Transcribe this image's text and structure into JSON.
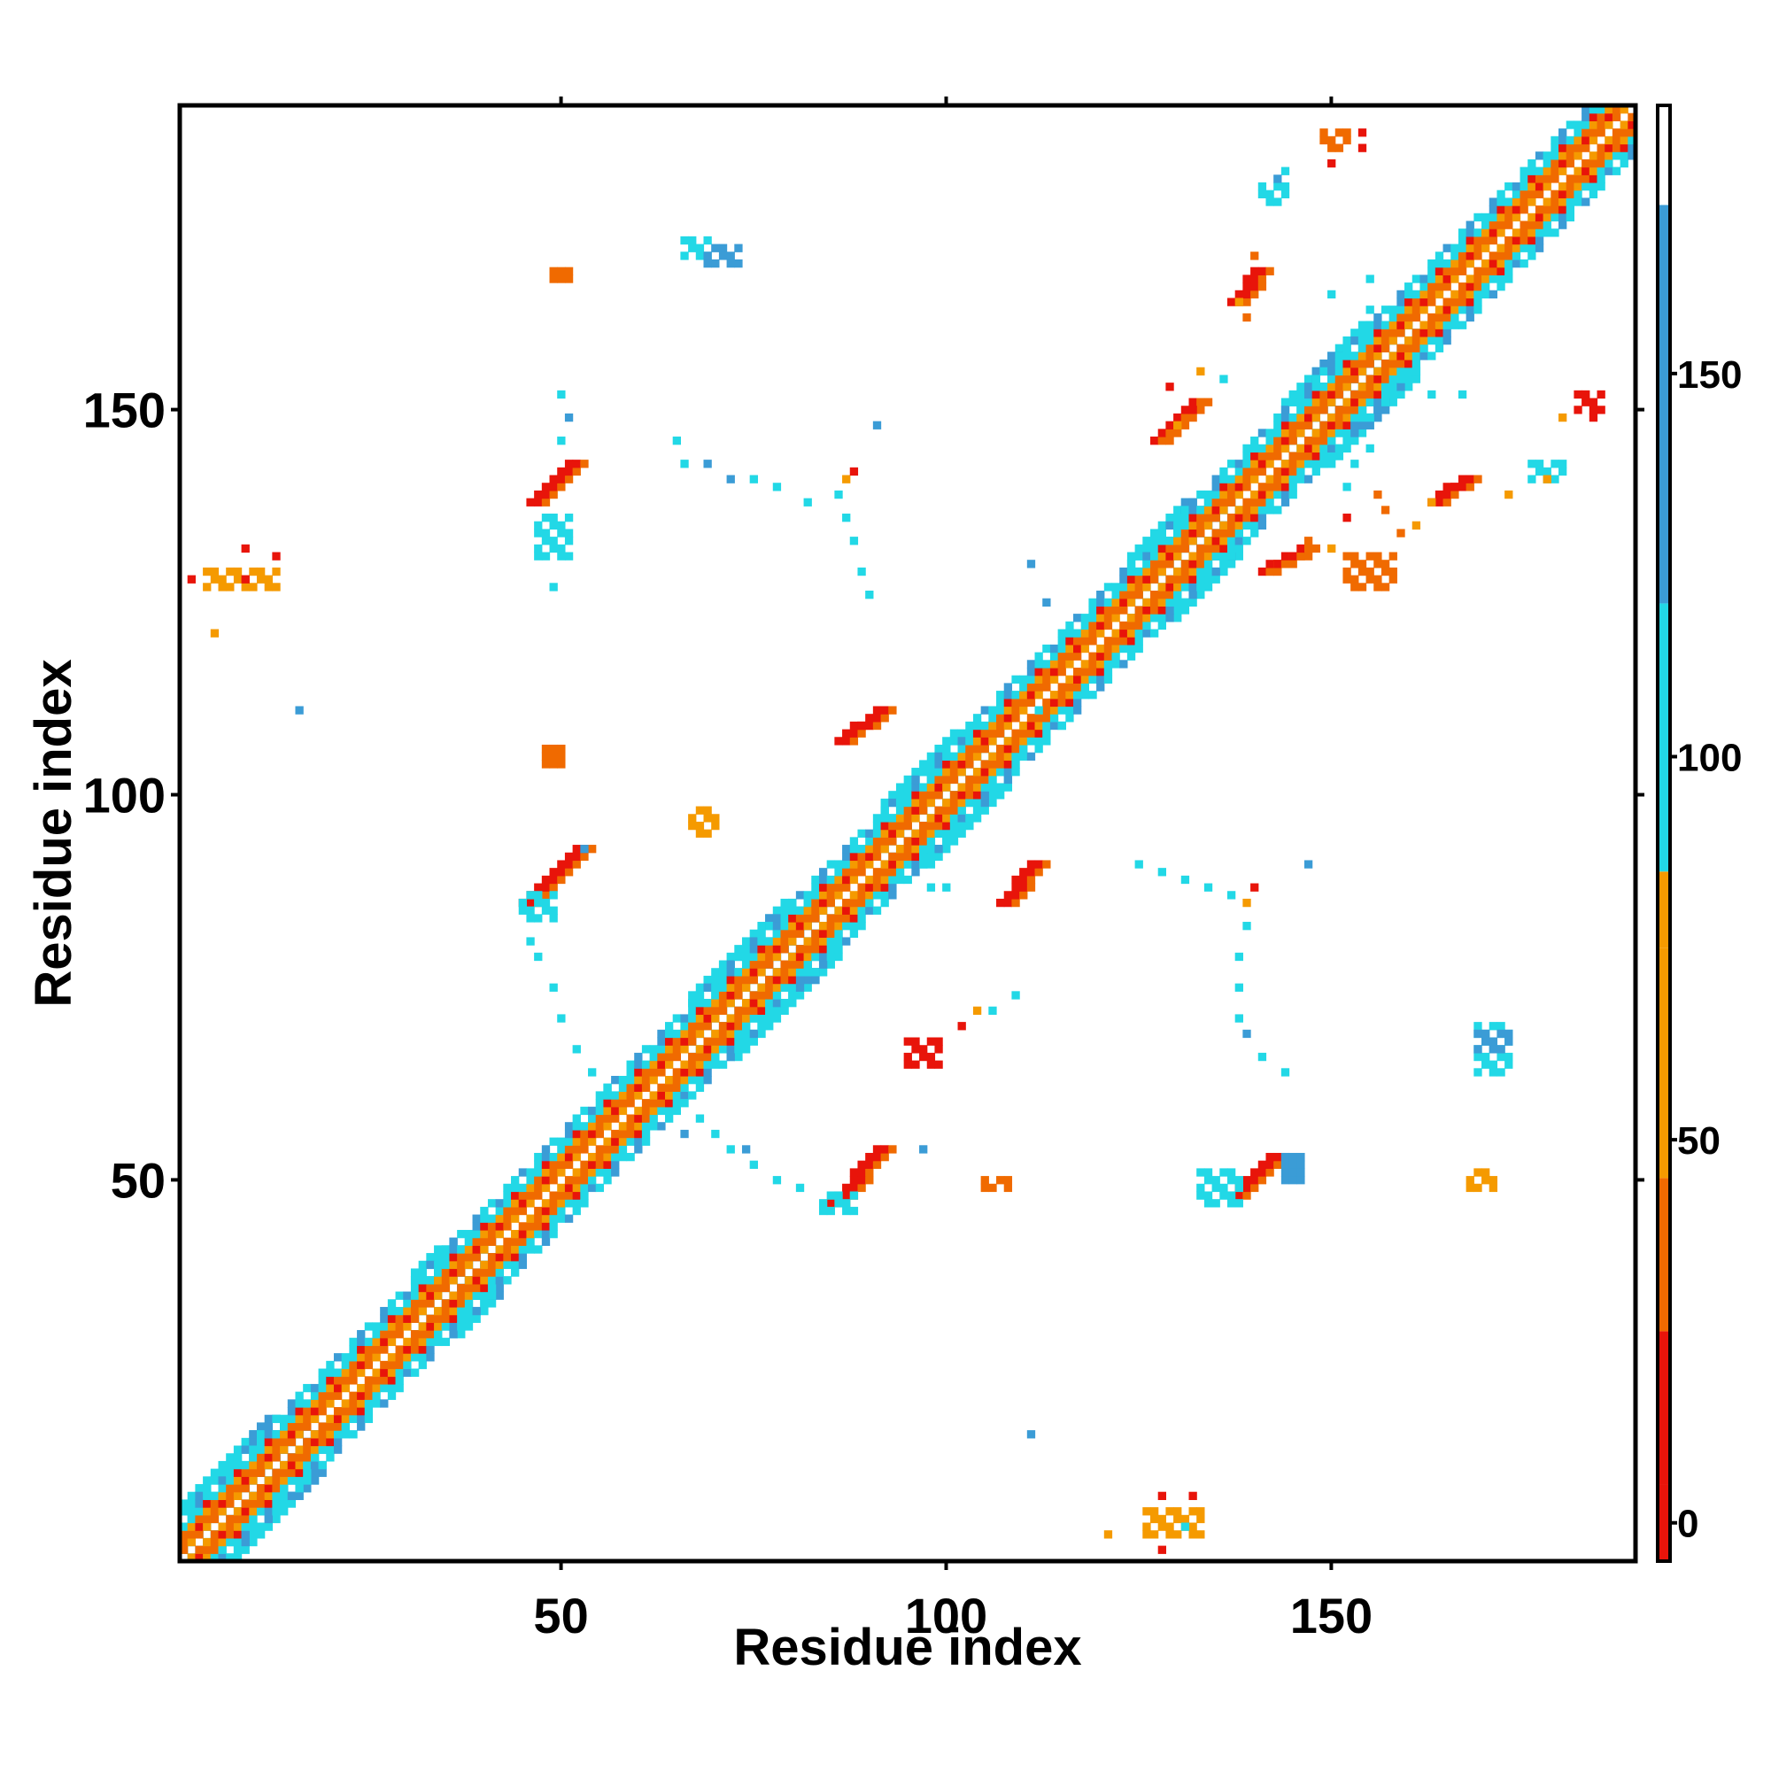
{
  "chart_data": {
    "type": "heatmap",
    "title": "",
    "xlabel": "Residue index",
    "ylabel": "Residue index",
    "xlim": [
      1,
      189
    ],
    "ylim": [
      1,
      189
    ],
    "x_ticks": [
      50,
      100,
      150
    ],
    "x_tick_labels": [
      "50",
      "100",
      "150"
    ],
    "y_ticks": [
      50,
      100,
      150
    ],
    "y_tick_labels": [
      "50",
      "100",
      "150"
    ],
    "colorbar": {
      "range": [
        -5,
        185
      ],
      "ticks": [
        0,
        50,
        100,
        150
      ],
      "tick_labels": [
        "0",
        "50",
        "100",
        "150"
      ],
      "bands": [
        {
          "from": -5,
          "to": 5,
          "color": "#e8140a"
        },
        {
          "from": 5,
          "to": 25,
          "color": "#e8140a"
        },
        {
          "from": 25,
          "to": 45,
          "color": "#f06a00"
        },
        {
          "from": 45,
          "to": 75,
          "color": "#f59a00"
        },
        {
          "from": 75,
          "to": 85,
          "color": "#f59a00"
        },
        {
          "from": 85,
          "to": 120,
          "color": "#22d8e6"
        },
        {
          "from": 120,
          "to": 172,
          "color": "#3b9cd6"
        },
        {
          "from": 172,
          "to": 185,
          "color": "#ffffff"
        }
      ]
    },
    "colors": {
      "red": "#e8140a",
      "orange": "#f06a00",
      "amber": "#f59a00",
      "cyan": "#22d8e6",
      "blue": "#3b9cd6"
    },
    "diagonal_band": {
      "x_range": [
        1,
        189
      ],
      "half_width": 6,
      "pattern": [
        "white",
        "orange",
        "amber",
        "red",
        "cyan",
        "blue"
      ]
    },
    "blocks": [
      {
        "x": [
          1,
          18
        ],
        "y": [
          1,
          18
        ],
        "color": "cyan"
      },
      {
        "x": [
          10,
          19
        ],
        "y": [
          9,
          19
        ],
        "color": "blue"
      },
      {
        "x": [
          31,
          41
        ],
        "y": [
          30,
          41
        ],
        "color": "cyan"
      },
      {
        "x": [
          36,
          42
        ],
        "y": [
          35,
          42
        ],
        "color": "blue"
      },
      {
        "x": [
          67,
          86
        ],
        "y": [
          66,
          86
        ],
        "color": "cyan"
      },
      {
        "x": [
          77,
          83
        ],
        "y": [
          76,
          84
        ],
        "color": "blue"
      },
      {
        "x": [
          92,
          108
        ],
        "y": [
          91,
          108
        ],
        "color": "cyan"
      },
      {
        "x": [
          124,
          138
        ],
        "y": [
          123,
          138
        ],
        "color": "cyan"
      },
      {
        "x": [
          131,
          137
        ],
        "y": [
          131,
          138
        ],
        "color": "blue"
      },
      {
        "x": [
          144,
          161
        ],
        "y": [
          143,
          161
        ],
        "color": "cyan"
      },
      {
        "x": [
          148,
          157
        ],
        "y": [
          148,
          157
        ],
        "color": "blue"
      }
    ],
    "segments": [
      {
        "x": [
          86,
          92
        ],
        "y": [
          47,
          54
        ],
        "color": "red"
      },
      {
        "x": [
          46,
          53
        ],
        "y": [
          86,
          93
        ],
        "color": "red"
      },
      {
        "x": [
          138,
          143
        ],
        "y": [
          48,
          53
        ],
        "color": "red"
      },
      {
        "x": [
          47,
          52
        ],
        "y": [
          138,
          143
        ],
        "color": "red"
      },
      {
        "x": [
          108,
          112
        ],
        "y": [
          86,
          91
        ],
        "color": "red"
      },
      {
        "x": [
          87,
          92
        ],
        "y": [
          107,
          111
        ],
        "color": "red"
      },
      {
        "x": [
          164,
          168
        ],
        "y": [
          138,
          141
        ],
        "color": "red"
      },
      {
        "x": [
          138,
          141
        ],
        "y": [
          164,
          168
        ],
        "color": "red"
      },
      {
        "x": [
          128,
          133
        ],
        "y": [
          146,
          151
        ],
        "color": "orange"
      },
      {
        "x": [
          142,
          147
        ],
        "y": [
          129,
          132
        ],
        "color": "orange"
      }
    ],
    "patches": [
      {
        "x": [
          84,
          88
        ],
        "y": [
          46,
          48
        ],
        "color": "cyan"
      },
      {
        "x": [
          133,
          138
        ],
        "y": [
          47,
          51
        ],
        "color": "cyan"
      },
      {
        "x": [
          45,
          49
        ],
        "y": [
          84,
          87
        ],
        "color": "cyan"
      },
      {
        "x": [
          47,
          51
        ],
        "y": [
          131,
          136
        ],
        "color": "cyan"
      },
      {
        "x": [
          169,
          173
        ],
        "y": [
          64,
          70
        ],
        "color": "cyan"
      },
      {
        "x": [
          169,
          173
        ],
        "y": [
          67,
          69
        ],
        "color": "blue"
      },
      {
        "x": [
          144,
          146
        ],
        "y": [
          50,
          53
        ],
        "color": "blue"
      },
      {
        "x": [
          66,
          69
        ],
        "y": [
          170,
          172
        ],
        "color": "cyan"
      },
      {
        "x": [
          69,
          73
        ],
        "y": [
          169,
          171
        ],
        "color": "blue"
      },
      {
        "x": [
          4,
          13
        ],
        "y": [
          127,
          129
        ],
        "color": "amber"
      },
      {
        "x": [
          126,
          133
        ],
        "y": [
          4,
          7
        ],
        "color": "amber"
      },
      {
        "x": [
          105,
          108
        ],
        "y": [
          49,
          50
        ],
        "color": "orange"
      },
      {
        "x": [
          48,
          50
        ],
        "y": [
          104,
          106
        ],
        "color": "orange"
      },
      {
        "x": [
          168,
          171
        ],
        "y": [
          49,
          51
        ],
        "color": "amber"
      },
      {
        "x": [
          182,
          185
        ],
        "y": [
          150,
          152
        ],
        "color": "red"
      },
      {
        "x": [
          176,
          180
        ],
        "y": [
          141,
          143
        ],
        "color": "cyan"
      },
      {
        "x": [
          152,
          158
        ],
        "y": [
          127,
          131
        ],
        "color": "orange"
      },
      {
        "x": [
          149,
          152
        ],
        "y": [
          184,
          186
        ],
        "color": "orange"
      },
      {
        "x": [
          141,
          144
        ],
        "y": [
          177,
          179
        ],
        "color": "cyan"
      },
      {
        "x": [
          49,
          51
        ],
        "y": [
          167,
          168
        ],
        "color": "orange"
      },
      {
        "x": [
          95,
          99
        ],
        "y": [
          65,
          68
        ],
        "color": "red"
      },
      {
        "x": [
          67,
          70
        ],
        "y": [
          95,
          98
        ],
        "color": "amber"
      }
    ],
    "scatter": [
      {
        "x": 66,
        "y": 60,
        "color": "cyan"
      },
      {
        "x": 68,
        "y": 58,
        "color": "cyan"
      },
      {
        "x": 70,
        "y": 56,
        "color": "cyan"
      },
      {
        "x": 72,
        "y": 54,
        "color": "cyan"
      },
      {
        "x": 75,
        "y": 52,
        "color": "cyan"
      },
      {
        "x": 78,
        "y": 50,
        "color": "cyan"
      },
      {
        "x": 81,
        "y": 49,
        "color": "cyan"
      },
      {
        "x": 66,
        "y": 56,
        "color": "blue"
      },
      {
        "x": 74,
        "y": 54,
        "color": "blue"
      },
      {
        "x": 97,
        "y": 54,
        "color": "blue"
      },
      {
        "x": 56,
        "y": 62,
        "color": "cyan"
      },
      {
        "x": 54,
        "y": 64,
        "color": "cyan"
      },
      {
        "x": 52,
        "y": 67,
        "color": "cyan"
      },
      {
        "x": 50,
        "y": 71,
        "color": "cyan"
      },
      {
        "x": 49,
        "y": 75,
        "color": "cyan"
      },
      {
        "x": 47,
        "y": 79,
        "color": "cyan"
      },
      {
        "x": 46,
        "y": 81,
        "color": "cyan"
      },
      {
        "x": 53,
        "y": 93,
        "color": "blue"
      },
      {
        "x": 104,
        "y": 72,
        "color": "amber"
      },
      {
        "x": 102,
        "y": 70,
        "color": "red"
      },
      {
        "x": 106,
        "y": 72,
        "color": "cyan"
      },
      {
        "x": 109,
        "y": 74,
        "color": "cyan"
      },
      {
        "x": 98,
        "y": 88,
        "color": "cyan"
      },
      {
        "x": 100,
        "y": 88,
        "color": "cyan"
      },
      {
        "x": 111,
        "y": 17,
        "color": "blue"
      },
      {
        "x": 121,
        "y": 4,
        "color": "amber"
      },
      {
        "x": 128,
        "y": 2,
        "color": "red"
      },
      {
        "x": 131,
        "y": 5,
        "color": "cyan"
      },
      {
        "x": 128,
        "y": 9,
        "color": "red"
      },
      {
        "x": 132,
        "y": 9,
        "color": "red"
      },
      {
        "x": 16,
        "y": 111,
        "color": "blue"
      },
      {
        "x": 5,
        "y": 121,
        "color": "amber"
      },
      {
        "x": 2,
        "y": 128,
        "color": "red"
      },
      {
        "x": 9,
        "y": 128,
        "color": "red"
      },
      {
        "x": 9,
        "y": 132,
        "color": "red"
      },
      {
        "x": 13,
        "y": 131,
        "color": "red"
      },
      {
        "x": 125,
        "y": 91,
        "color": "cyan"
      },
      {
        "x": 128,
        "y": 90,
        "color": "cyan"
      },
      {
        "x": 131,
        "y": 89,
        "color": "cyan"
      },
      {
        "x": 134,
        "y": 88,
        "color": "cyan"
      },
      {
        "x": 137,
        "y": 87,
        "color": "cyan"
      },
      {
        "x": 139,
        "y": 86,
        "color": "amber"
      },
      {
        "x": 140,
        "y": 88,
        "color": "red"
      },
      {
        "x": 139,
        "y": 83,
        "color": "cyan"
      },
      {
        "x": 138,
        "y": 79,
        "color": "cyan"
      },
      {
        "x": 138,
        "y": 75,
        "color": "cyan"
      },
      {
        "x": 138,
        "y": 71,
        "color": "cyan"
      },
      {
        "x": 139,
        "y": 69,
        "color": "blue"
      },
      {
        "x": 141,
        "y": 66,
        "color": "cyan"
      },
      {
        "x": 144,
        "y": 64,
        "color": "cyan"
      },
      {
        "x": 147,
        "y": 91,
        "color": "blue"
      },
      {
        "x": 112,
        "y": 111,
        "color": "cyan"
      },
      {
        "x": 115,
        "y": 109,
        "color": "cyan"
      },
      {
        "x": 90,
        "y": 126,
        "color": "cyan"
      },
      {
        "x": 89,
        "y": 129,
        "color": "cyan"
      },
      {
        "x": 88,
        "y": 133,
        "color": "cyan"
      },
      {
        "x": 87,
        "y": 136,
        "color": "cyan"
      },
      {
        "x": 86,
        "y": 139,
        "color": "cyan"
      },
      {
        "x": 87,
        "y": 141,
        "color": "amber"
      },
      {
        "x": 88,
        "y": 142,
        "color": "red"
      },
      {
        "x": 82,
        "y": 138,
        "color": "cyan"
      },
      {
        "x": 78,
        "y": 140,
        "color": "cyan"
      },
      {
        "x": 75,
        "y": 141,
        "color": "cyan"
      },
      {
        "x": 72,
        "y": 141,
        "color": "blue"
      },
      {
        "x": 69,
        "y": 143,
        "color": "blue"
      },
      {
        "x": 66,
        "y": 143,
        "color": "cyan"
      },
      {
        "x": 65,
        "y": 146,
        "color": "cyan"
      },
      {
        "x": 91,
        "y": 148,
        "color": "blue"
      },
      {
        "x": 111,
        "y": 130,
        "color": "blue"
      },
      {
        "x": 113,
        "y": 125,
        "color": "blue"
      },
      {
        "x": 50,
        "y": 146,
        "color": "cyan"
      },
      {
        "x": 51,
        "y": 149,
        "color": "blue"
      },
      {
        "x": 50,
        "y": 152,
        "color": "cyan"
      },
      {
        "x": 49,
        "y": 127,
        "color": "cyan"
      },
      {
        "x": 133,
        "y": 155,
        "color": "amber"
      },
      {
        "x": 129,
        "y": 153,
        "color": "red"
      },
      {
        "x": 132,
        "y": 150,
        "color": "red"
      },
      {
        "x": 130,
        "y": 148,
        "color": "amber"
      },
      {
        "x": 136,
        "y": 154,
        "color": "cyan"
      },
      {
        "x": 139,
        "y": 162,
        "color": "orange"
      },
      {
        "x": 138,
        "y": 164,
        "color": "amber"
      },
      {
        "x": 140,
        "y": 170,
        "color": "orange"
      },
      {
        "x": 144,
        "y": 181,
        "color": "cyan"
      },
      {
        "x": 143,
        "y": 180,
        "color": "blue"
      },
      {
        "x": 150,
        "y": 182,
        "color": "red"
      },
      {
        "x": 154,
        "y": 184,
        "color": "red"
      },
      {
        "x": 154,
        "y": 186,
        "color": "red"
      },
      {
        "x": 150,
        "y": 165,
        "color": "cyan"
      },
      {
        "x": 155,
        "y": 167,
        "color": "cyan"
      },
      {
        "x": 155,
        "y": 163,
        "color": "cyan"
      },
      {
        "x": 159,
        "y": 154,
        "color": "cyan"
      },
      {
        "x": 163,
        "y": 152,
        "color": "cyan"
      },
      {
        "x": 167,
        "y": 152,
        "color": "cyan"
      },
      {
        "x": 155,
        "y": 145,
        "color": "cyan"
      },
      {
        "x": 153,
        "y": 143,
        "color": "cyan"
      },
      {
        "x": 152,
        "y": 140,
        "color": "cyan"
      },
      {
        "x": 161,
        "y": 135,
        "color": "amber"
      },
      {
        "x": 157,
        "y": 137,
        "color": "orange"
      },
      {
        "x": 152,
        "y": 136,
        "color": "red"
      },
      {
        "x": 147,
        "y": 133,
        "color": "orange"
      },
      {
        "x": 150,
        "y": 132,
        "color": "amber"
      },
      {
        "x": 156,
        "y": 139,
        "color": "orange"
      },
      {
        "x": 184,
        "y": 149,
        "color": "red"
      },
      {
        "x": 180,
        "y": 149,
        "color": "amber"
      },
      {
        "x": 178,
        "y": 141,
        "color": "amber"
      },
      {
        "x": 173,
        "y": 139,
        "color": "amber"
      },
      {
        "x": 163,
        "y": 138,
        "color": "amber"
      },
      {
        "x": 159,
        "y": 134,
        "color": "orange"
      }
    ]
  }
}
